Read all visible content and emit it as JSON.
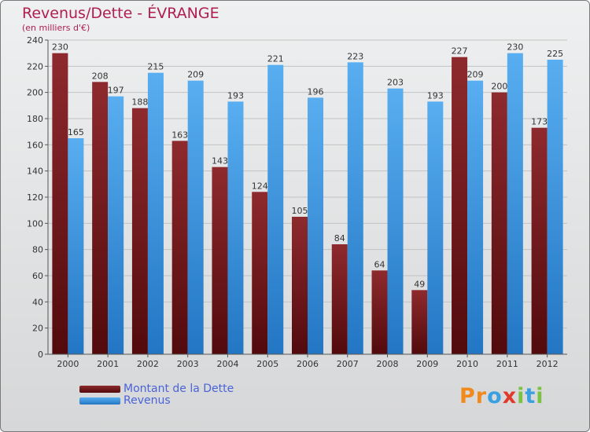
{
  "title": "Revenus/Dette - ÉVRANGE",
  "subtitle": "(en milliers d'€)",
  "brand": {
    "letters": [
      "P",
      "r",
      "o",
      "x",
      "i",
      "t",
      "i"
    ]
  },
  "colors": {
    "dette": "#7a1c1e",
    "revenus": "#3d94dc",
    "title": "#b01e50",
    "legend_text": "#4a63d8"
  },
  "chart_data": {
    "type": "bar",
    "categories": [
      "2000",
      "2001",
      "2002",
      "2003",
      "2004",
      "2005",
      "2006",
      "2007",
      "2008",
      "2009",
      "2010",
      "2011",
      "2012"
    ],
    "series": [
      {
        "name": "Montant de la Dette",
        "values": [
          230,
          208,
          188,
          163,
          143,
          124,
          105,
          84,
          64,
          49,
          227,
          200,
          173
        ]
      },
      {
        "name": "Revenus",
        "values": [
          165,
          197,
          215,
          209,
          193,
          221,
          196,
          223,
          203,
          193,
          209,
          230,
          225
        ]
      }
    ],
    "ylim": [
      0,
      240
    ],
    "yticks": [
      0,
      20,
      40,
      60,
      80,
      100,
      120,
      140,
      160,
      180,
      200,
      220,
      240
    ],
    "grid": true,
    "legend_position": "bottom-left"
  }
}
